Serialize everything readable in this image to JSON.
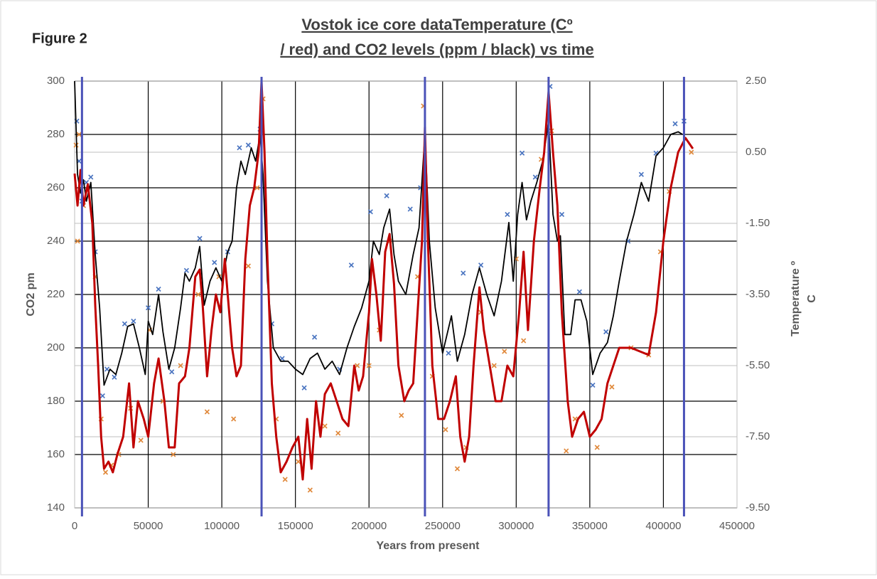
{
  "chart_data": {
    "type": "line",
    "figure_label": "Figure 2",
    "title": [
      "Vostok ice core dataTemperature (Cº",
      "/ red)  and CO2 levels (ppm / black) vs time"
    ],
    "xlabel": "Years from present",
    "ylabel": "CO2 pm",
    "y2label": [
      "Temperature º",
      "C"
    ],
    "xlim": [
      0,
      450000
    ],
    "xticks": [
      0,
      50000,
      100000,
      150000,
      200000,
      250000,
      300000,
      350000,
      400000,
      450000
    ],
    "ylim": [
      140,
      300
    ],
    "yticks": [
      140,
      160,
      180,
      200,
      220,
      240,
      260,
      280,
      300
    ],
    "y2lim": [
      -9.5,
      2.5
    ],
    "y2ticks": [
      {
        "value": 2.5,
        "label": "2.50"
      },
      {
        "value": 0.5,
        "label": "0.50"
      },
      {
        "value": -1.5,
        "label": "-1.50"
      },
      {
        "value": -3.5,
        "label": "-3.50"
      },
      {
        "value": -5.5,
        "label": "-5.50"
      },
      {
        "value": -7.5,
        "label": "-7.50"
      },
      {
        "value": -9.5,
        "label": "-9.50"
      }
    ],
    "grid": true,
    "reference_lines": {
      "color": "#4a52b8",
      "x": [
        5000,
        127000,
        238000,
        322000,
        414000
      ]
    },
    "series": [
      {
        "kind": "scatter",
        "color": "#4a74c0",
        "axis": "y",
        "x": [
          1500,
          3000,
          5000,
          8000,
          11000,
          14000,
          19000,
          22000,
          27000,
          34000,
          40000,
          50000,
          57000,
          66000,
          76000,
          85000,
          95000,
          104000,
          112000,
          118000,
          126000,
          134000,
          141000,
          156000,
          163000,
          180000,
          188000,
          201000,
          212000,
          228000,
          235000,
          254000,
          264000,
          276000,
          294000,
          304000,
          313000,
          323000,
          331000,
          343000,
          352000,
          361000,
          376000,
          385000,
          395000,
          408000,
          414000
        ],
        "values": [
          285,
          270,
          255,
          262,
          264,
          236,
          182,
          192,
          189,
          209,
          210,
          215,
          222,
          191,
          229,
          241,
          232,
          236,
          275,
          276,
          282,
          209,
          196,
          185,
          204,
          192,
          231,
          251,
          257,
          252,
          260,
          198,
          228,
          231,
          250,
          273,
          264,
          298,
          250,
          221,
          186,
          206,
          240,
          265,
          273,
          284,
          285
        ]
      },
      {
        "kind": "scatter",
        "color": "#e0883a",
        "axis": "y2",
        "x": [
          1000,
          2000,
          3000,
          6000,
          14000,
          18000,
          21000,
          25000,
          30000,
          38000,
          45000,
          51000,
          60000,
          67000,
          72000,
          84000,
          90000,
          98000,
          108000,
          118000,
          124000,
          128000,
          137000,
          143000,
          152000,
          160000,
          170000,
          179000,
          192000,
          200000,
          207000,
          214000,
          222000,
          233000,
          237000,
          243000,
          252000,
          260000,
          266000,
          276000,
          285000,
          292000,
          300000,
          305000,
          317000,
          324000,
          334000,
          340000,
          355000,
          365000,
          378000,
          390000,
          398000,
          404000,
          419000
        ],
        "values": [
          0.7,
          -2.0,
          1.0,
          -1.0,
          -3.0,
          -7.0,
          -8.5,
          -8.3,
          -8.0,
          -6.7,
          -7.6,
          -4.5,
          -6.5,
          -8.0,
          -5.5,
          -3.5,
          -6.8,
          -3.0,
          -7.0,
          -2.7,
          -0.5,
          2.0,
          -7.0,
          -8.7,
          -8.2,
          -9.0,
          -7.2,
          -7.4,
          -5.5,
          -5.5,
          -4.5,
          -2.0,
          -6.9,
          -3.0,
          1.8,
          -5.8,
          -7.3,
          -8.4,
          -7.8,
          -4.0,
          -5.5,
          -5.1,
          -2.5,
          -4.8,
          0.3,
          1.1,
          -7.9,
          -7.0,
          -7.8,
          -6.1,
          -5.0,
          -5.2,
          -2.3,
          -0.6,
          0.5
        ]
      },
      {
        "kind": "line",
        "color": "#000000",
        "axis": "y",
        "x": [
          0,
          2000,
          4000,
          6000,
          8000,
          11000,
          14000,
          17000,
          20000,
          24000,
          28000,
          32000,
          36000,
          40000,
          44000,
          48000,
          50000,
          53000,
          57000,
          60000,
          64000,
          68000,
          72000,
          75000,
          78000,
          82000,
          85000,
          88000,
          92000,
          96000,
          100000,
          104000,
          107000,
          110000,
          113000,
          116000,
          120000,
          123000,
          126000,
          128000,
          131000,
          135000,
          140000,
          145000,
          150000,
          155000,
          160000,
          165000,
          170000,
          175000,
          180000,
          185000,
          190000,
          195000,
          200000,
          203000,
          207000,
          210000,
          214000,
          217000,
          220000,
          225000,
          230000,
          234000,
          238000,
          241000,
          245000,
          250000,
          253000,
          256000,
          260000,
          265000,
          270000,
          275000,
          280000,
          285000,
          290000,
          295000,
          298000,
          301000,
          304000,
          307000,
          310000,
          314000,
          318000,
          322000,
          325000,
          328000,
          330000,
          333000,
          337000,
          340000,
          344000,
          348000,
          352000,
          357000,
          362000,
          366000,
          370000,
          375000,
          380000,
          385000,
          390000,
          395000,
          400000,
          405000,
          410000,
          413000
        ],
        "values": [
          300,
          265,
          258,
          263,
          255,
          262,
          235,
          215,
          186,
          192,
          190,
          198,
          208,
          209,
          200,
          190,
          210,
          205,
          220,
          206,
          192,
          200,
          215,
          228,
          225,
          230,
          238,
          216,
          225,
          230,
          225,
          236,
          240,
          260,
          270,
          265,
          275,
          270,
          280,
          265,
          225,
          200,
          195,
          195,
          192,
          190,
          196,
          198,
          192,
          195,
          190,
          200,
          208,
          215,
          225,
          240,
          235,
          245,
          252,
          235,
          225,
          220,
          235,
          245,
          280,
          240,
          215,
          198,
          205,
          212,
          195,
          205,
          220,
          230,
          220,
          212,
          225,
          247,
          225,
          250,
          262,
          248,
          255,
          262,
          270,
          285,
          250,
          240,
          242,
          205,
          205,
          218,
          218,
          210,
          190,
          198,
          202,
          212,
          225,
          240,
          250,
          262,
          255,
          272,
          275,
          280,
          281,
          280
        ]
      },
      {
        "kind": "line",
        "color": "#c00000",
        "axis": "y2",
        "x": [
          0,
          2000,
          4000,
          6000,
          9000,
          12000,
          14000,
          16000,
          18000,
          20000,
          23000,
          26000,
          29000,
          33000,
          37000,
          40000,
          43000,
          47000,
          50000,
          54000,
          57000,
          61000,
          64000,
          68000,
          71000,
          75000,
          78000,
          82000,
          85000,
          87000,
          90000,
          93000,
          96000,
          99000,
          102000,
          104000,
          107000,
          110000,
          113000,
          116000,
          119000,
          122000,
          125000,
          127000,
          129000,
          131000,
          134000,
          137000,
          140000,
          144000,
          148000,
          152000,
          155000,
          158000,
          161000,
          164000,
          167000,
          170000,
          174000,
          178000,
          182000,
          186000,
          190000,
          193000,
          196000,
          200000,
          202000,
          205000,
          208000,
          211000,
          214000,
          217000,
          220000,
          224000,
          227000,
          230000,
          233000,
          236000,
          238000,
          240000,
          243000,
          247000,
          251000,
          255000,
          259000,
          262000,
          265000,
          268000,
          271000,
          275000,
          278000,
          282000,
          286000,
          290000,
          294000,
          298000,
          302000,
          305000,
          308000,
          312000,
          316000,
          319000,
          322000,
          325000,
          328000,
          331000,
          335000,
          338000,
          342000,
          346000,
          350000,
          354000,
          358000,
          362000,
          366000,
          370000,
          378000,
          390000,
          395000,
          400000,
          405000,
          410000,
          415000,
          420000
        ],
        "values": [
          -0.1,
          -1.0,
          0.0,
          -1.0,
          -0.4,
          -1.5,
          -3.8,
          -5.5,
          -7.5,
          -8.4,
          -8.2,
          -8.5,
          -8.0,
          -7.5,
          -6.0,
          -7.8,
          -6.5,
          -7.0,
          -7.5,
          -6.0,
          -5.3,
          -6.5,
          -7.8,
          -7.8,
          -6.0,
          -5.8,
          -5.0,
          -3.0,
          -2.8,
          -3.8,
          -5.8,
          -4.5,
          -3.5,
          -4.0,
          -2.5,
          -3.5,
          -5.0,
          -5.8,
          -5.5,
          -2.5,
          -1.0,
          -0.5,
          0.5,
          2.5,
          0.5,
          -2.5,
          -6.0,
          -7.5,
          -8.5,
          -8.2,
          -7.8,
          -7.5,
          -8.7,
          -7.0,
          -8.4,
          -6.5,
          -7.5,
          -6.3,
          -6.0,
          -6.5,
          -7.0,
          -7.2,
          -5.5,
          -6.2,
          -5.8,
          -4.0,
          -2.5,
          -3.5,
          -4.8,
          -2.3,
          -1.8,
          -3.2,
          -5.5,
          -6.5,
          -6.2,
          -6.0,
          -4.0,
          -2.0,
          1.2,
          -2.0,
          -5.5,
          -7.0,
          -7.0,
          -6.5,
          -5.8,
          -7.5,
          -8.2,
          -7.5,
          -5.5,
          -3.3,
          -4.5,
          -5.5,
          -6.5,
          -6.5,
          -5.5,
          -5.8,
          -4.0,
          -2.3,
          -4.5,
          -2.0,
          -0.5,
          0.5,
          2.2,
          0.5,
          -1.0,
          -4.0,
          -6.5,
          -7.5,
          -7.0,
          -6.8,
          -7.5,
          -7.3,
          -7.0,
          -6.0,
          -5.5,
          -5.0,
          -5.0,
          -5.2,
          -4.0,
          -2.0,
          -0.5,
          0.5,
          0.9,
          0.6
        ]
      }
    ]
  }
}
